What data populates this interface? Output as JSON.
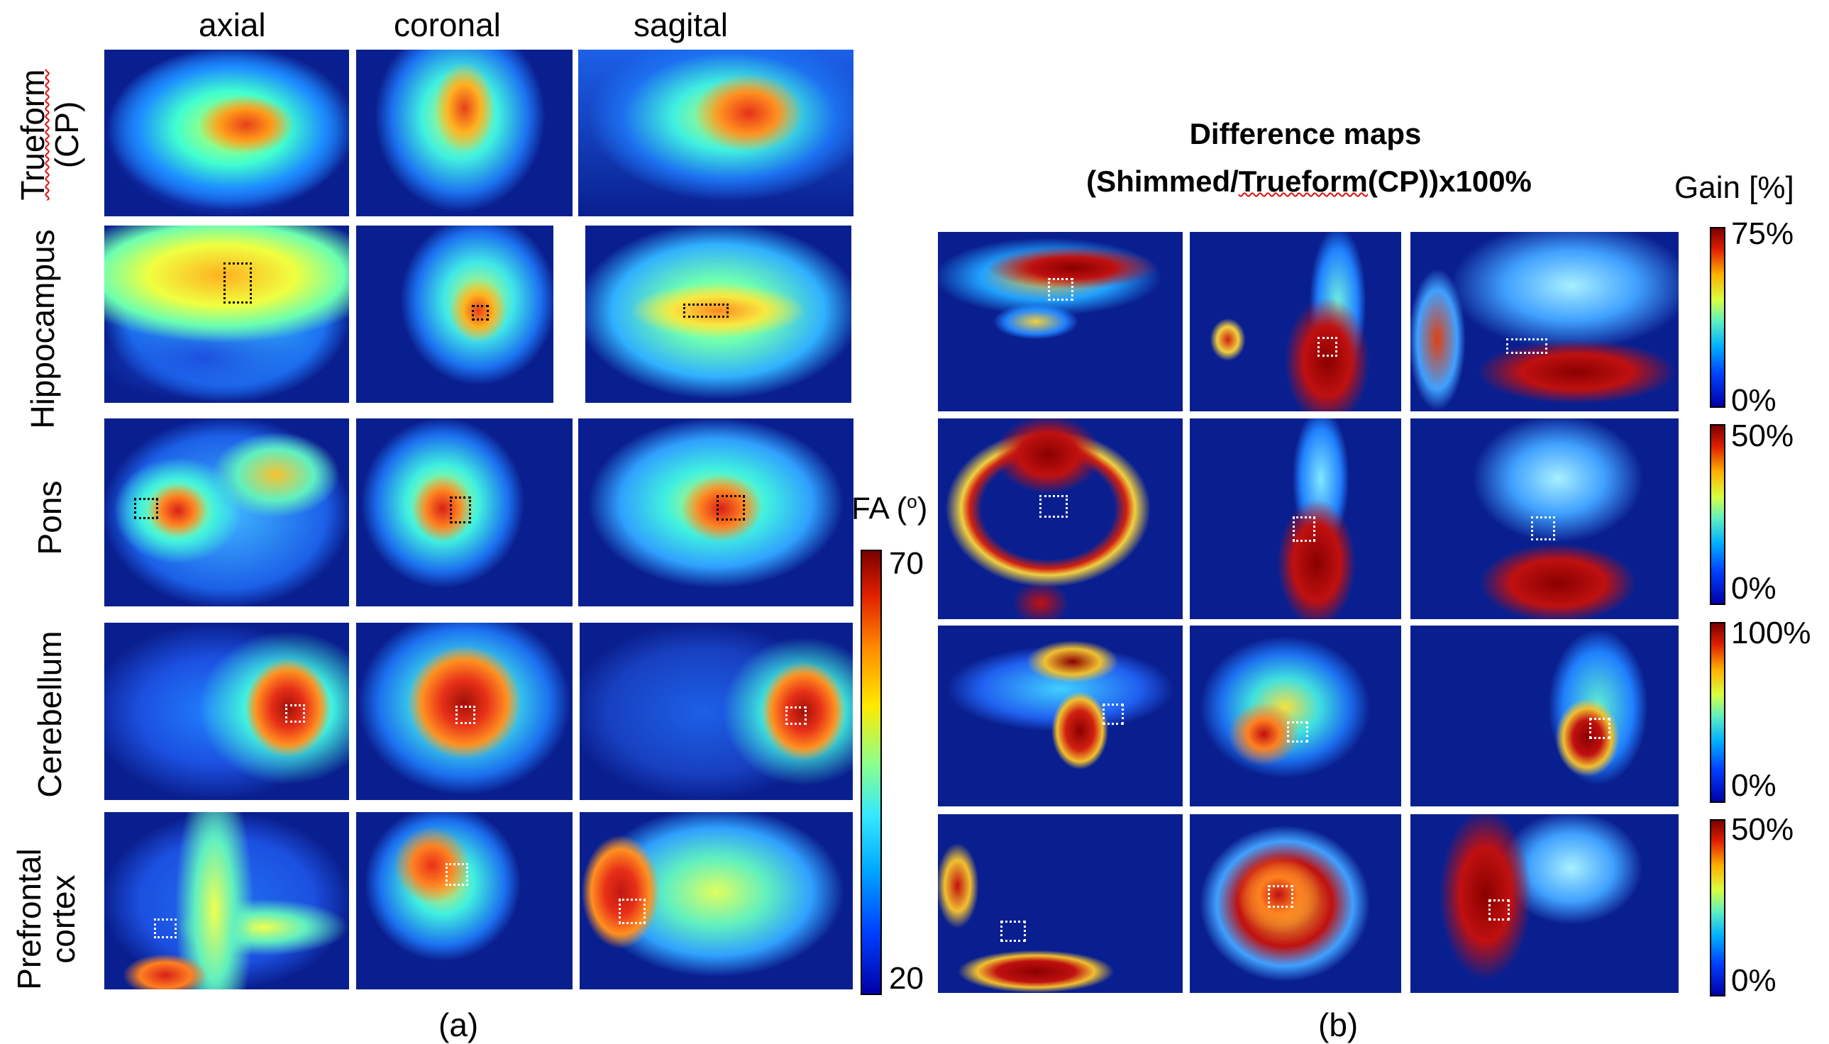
{
  "panel_a": {
    "columns": [
      "axial",
      "coronal",
      "sagital"
    ],
    "rows": [
      {
        "label": "Trueform (CP)",
        "label_parts": [
          "Trueform",
          "(CP)"
        ]
      },
      {
        "label": "Hippocampus",
        "label_parts": [
          "Hippocampus"
        ]
      },
      {
        "label": "Pons",
        "label_parts": [
          "Pons"
        ]
      },
      {
        "label": "Cerebellum",
        "label_parts": [
          "Cerebellum"
        ]
      },
      {
        "label": "Prefrontal cortex",
        "label_parts": [
          "Prefrontal",
          "cortex"
        ]
      }
    ],
    "colorbar": {
      "label": "FA (o)",
      "label_main": "FA (",
      "label_sup": "o",
      "label_end": ")",
      "max": "70",
      "min": "20"
    },
    "caption": "(a)"
  },
  "panel_b": {
    "title_line1": "Difference maps",
    "title_line2_pre": "(Shimmed/",
    "title_line2_mid": "Trueform",
    "title_line2_post": "(CP))x100%",
    "gain_label": "Gain [%]",
    "colorbars": [
      {
        "max": "75%",
        "min": "0%"
      },
      {
        "max": "50%",
        "min": "0%"
      },
      {
        "max": "100%",
        "min": "0%"
      },
      {
        "max": "50%",
        "min": "0%"
      }
    ],
    "caption": "(b)"
  },
  "colors": {
    "map_background": "#0a1f8f",
    "roi_black": "#000000",
    "roi_white": "#ffffff"
  }
}
